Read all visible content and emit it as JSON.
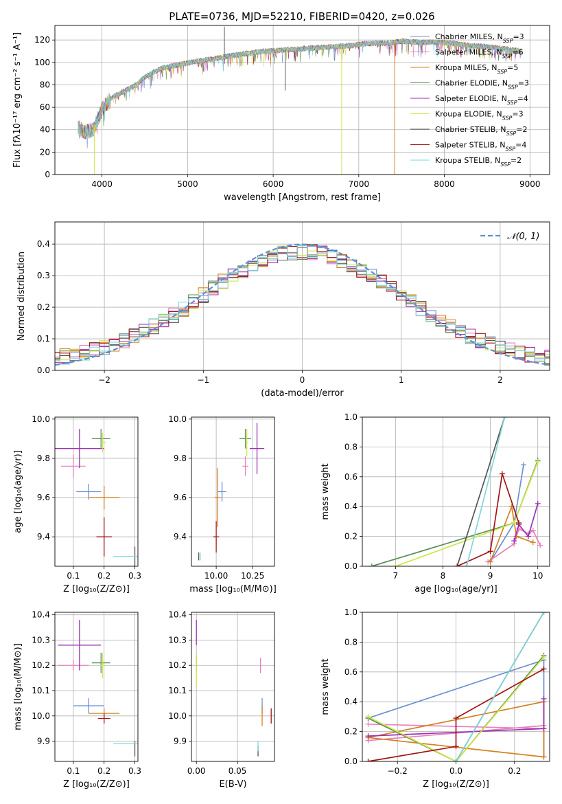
{
  "figure": {
    "title": "PLATE=0736, MJD=52210, FIBERID=0420, z=0.026"
  },
  "colors": {
    "series": [
      "#6b8fd6",
      "#ea7fbd",
      "#d6801f",
      "#5b8f56",
      "#9a32b5",
      "#cfe64a",
      "#555555",
      "#a31515",
      "#7fd6d9"
    ],
    "grid": "#b0b0b0",
    "normal": "#5b8fd6"
  },
  "models": [
    {
      "name": "Chabrier MILES",
      "nssp": "3"
    },
    {
      "name": "Salpeter MILES",
      "nssp": "6"
    },
    {
      "name": "Kroupa MILES",
      "nssp": "5"
    },
    {
      "name": "Chabrier ELODIE",
      "nssp": "3"
    },
    {
      "name": "Salpeter ELODIE",
      "nssp": "4"
    },
    {
      "name": "Kroupa ELODIE",
      "nssp": "3"
    },
    {
      "name": "Chabrier STELIB",
      "nssp": "2"
    },
    {
      "name": "Salpeter STELIB",
      "nssp": "4"
    },
    {
      "name": "Kroupa STELIB",
      "nssp": "2"
    }
  ],
  "chart_data": [
    {
      "id": "spectrum",
      "type": "line",
      "xlabel": "wavelength [Angstrom, rest frame]",
      "ylabel": "Flux [fλ10⁻¹⁷ erg cm⁻² s⁻¹ A⁻¹]",
      "xlim": [
        3450,
        9230
      ],
      "ylim": [
        0,
        133
      ],
      "xticks": [
        "4000",
        "5000",
        "6000",
        "7000",
        "8000",
        "9000"
      ],
      "xtick_values": [
        4000,
        5000,
        6000,
        7000,
        8000,
        9000
      ],
      "yticks": [
        "0",
        "20",
        "40",
        "60",
        "80",
        "100",
        "120"
      ],
      "ytick_values": [
        0,
        20,
        40,
        60,
        80,
        100,
        120
      ],
      "continuum": {
        "x": [
          3720,
          3800,
          3900,
          4000,
          4100,
          4200,
          4300,
          4400,
          4500,
          4700,
          4900,
          5100,
          5300,
          5500,
          5700,
          5900,
          6100,
          6300,
          6500,
          6700,
          6900,
          7100,
          7300,
          7500,
          7700,
          7900,
          8100,
          8300,
          8500,
          8700,
          8900
        ],
        "y": [
          42,
          38,
          40,
          58,
          68,
          72,
          76,
          80,
          87,
          95,
          98,
          101,
          103,
          106,
          108,
          110,
          111,
          112,
          113,
          114,
          115,
          117,
          117,
          119,
          118,
          118,
          117,
          115,
          114,
          112,
          110
        ]
      },
      "lines": [
        {
          "name": "Chabrier STELIB",
          "x": [
            5430
          ],
          "y": [
            132
          ]
        },
        {
          "name": "Chabrier STELIB",
          "x": [
            6140
          ],
          "y": [
            75
          ]
        },
        {
          "name": "Kroupa ELODIE",
          "x": [
            3910
          ],
          "y": [
            0
          ]
        },
        {
          "name": "Kroupa ELODIE",
          "x": [
            6800
          ],
          "y": [
            0
          ]
        },
        {
          "name": "Kroupa MILES",
          "x": [
            7420
          ],
          "y": [
            0
          ]
        }
      ]
    },
    {
      "id": "residuals",
      "type": "step",
      "xlabel": "(data-model)/error",
      "ylabel": "Normed distribution",
      "xlim": [
        -2.5,
        2.5
      ],
      "ylim": [
        0,
        0.47
      ],
      "xticks": [
        "−2",
        "−1",
        "0",
        "1",
        "2"
      ],
      "xtick_values": [
        -2,
        -1,
        0,
        1,
        2
      ],
      "yticks": [
        "0.0",
        "0.1",
        "0.2",
        "0.3",
        "0.4"
      ],
      "ytick_values": [
        0,
        0.1,
        0.2,
        0.3,
        0.4
      ],
      "bin_width": 0.1,
      "legend": "𝒩(0, 1)"
    },
    {
      "id": "z_age",
      "type": "errorbar",
      "xlabel": "Z [log₁₀(Z/Z⊙)]",
      "ylabel": "age  [log₁₀(age/yr)]",
      "xlim": [
        0.04,
        0.31
      ],
      "ylim": [
        9.25,
        10.01
      ],
      "xticks": [
        "0.1",
        "0.2",
        "0.3"
      ],
      "xtick_values": [
        0.1,
        0.2,
        0.3
      ],
      "yticks": [
        "9.4",
        "9.6",
        "9.8",
        "10.0"
      ],
      "ytick_values": [
        9.4,
        9.6,
        9.8,
        10.0
      ],
      "points": [
        {
          "x": 0.15,
          "y": 9.63,
          "xerr": 0.04,
          "yerr": 0.04
        },
        {
          "x": 0.1,
          "y": 9.76,
          "xerr": 0.04,
          "yerr": 0.06
        },
        {
          "x": 0.2,
          "y": 9.6,
          "xerr": 0.05,
          "yerr": 0.06
        },
        {
          "x": 0.19,
          "y": 9.9,
          "xerr": 0.03,
          "yerr": 0.05
        },
        {
          "x": 0.12,
          "y": 9.85,
          "xerr": 0.08,
          "yerr": 0.1
        },
        {
          "x": 0.195,
          "y": 9.88,
          "xerr": 0.01,
          "yerr": 0.05
        },
        {
          "x": 0.3,
          "y": 9.3,
          "xerr": 0.0,
          "yerr": 0.05
        },
        {
          "x": 0.2,
          "y": 9.4,
          "xerr": 0.025,
          "yerr": 0.1
        },
        {
          "x": 0.27,
          "y": 9.3,
          "xerr": 0.04,
          "yerr": 0.0
        }
      ]
    },
    {
      "id": "mass_age",
      "type": "errorbar",
      "xlabel": "mass [log₁₀(M/M⊙)]",
      "ylabel": "",
      "xlim": [
        9.83,
        10.4
      ],
      "ylim": [
        9.25,
        10.01
      ],
      "xticks": [
        "10.00",
        "10.25"
      ],
      "xtick_values": [
        10.0,
        10.25
      ],
      "yticks": [
        "9.4",
        "9.6",
        "9.8",
        "10.0"
      ],
      "ytick_values": [
        9.4,
        9.6,
        9.8,
        10.0
      ],
      "points": [
        {
          "x": 10.04,
          "y": 9.63,
          "xerr": 0.03,
          "yerr": 0.05
        },
        {
          "x": 10.2,
          "y": 9.76,
          "xerr": 0.02,
          "yerr": 0.05
        },
        {
          "x": 10.01,
          "y": 9.6,
          "xerr": 0.02,
          "yerr": 0.15
        },
        {
          "x": 10.2,
          "y": 9.9,
          "xerr": 0.04,
          "yerr": 0.05
        },
        {
          "x": 10.28,
          "y": 9.85,
          "xerr": 0.05,
          "yerr": 0.13
        },
        {
          "x": 10.21,
          "y": 9.88,
          "xerr": 0.01,
          "yerr": 0.07
        },
        {
          "x": 9.88,
          "y": 9.3,
          "xerr": 0.0,
          "yerr": 0.02
        },
        {
          "x": 10.0,
          "y": 9.4,
          "xerr": 0.02,
          "yerr": 0.08
        },
        {
          "x": 9.89,
          "y": 9.3,
          "xerr": 0.0,
          "yerr": 0.02
        }
      ]
    },
    {
      "id": "age_weight",
      "type": "line",
      "xlabel": "age  [log₁₀(age/yr)]",
      "ylabel": "mass weight",
      "xlim": [
        6.3,
        10.25
      ],
      "ylim": [
        0,
        1.0
      ],
      "xticks": [
        "7",
        "8",
        "9",
        "10"
      ],
      "xtick_values": [
        7,
        8,
        9,
        10
      ],
      "yticks": [
        "0.0",
        "0.2",
        "0.4",
        "0.6",
        "0.8",
        "1.0"
      ],
      "ytick_values": [
        0,
        0.2,
        0.4,
        0.6,
        0.8,
        1.0
      ],
      "series": [
        {
          "name": "Chabrier MILES",
          "x": [
            9.0,
            9.5,
            9.7
          ],
          "y": [
            0.03,
            0.29,
            0.68
          ]
        },
        {
          "name": "Salpeter MILES",
          "x": [
            8.95,
            9.5,
            9.6,
            9.8,
            9.9,
            10.05
          ],
          "y": [
            0.03,
            0.15,
            0.25,
            0.22,
            0.24,
            0.14
          ]
        },
        {
          "name": "Kroupa MILES",
          "x": [
            9.0,
            9.45,
            9.55,
            9.9
          ],
          "y": [
            0.03,
            0.4,
            0.2,
            0.16
          ]
        },
        {
          "name": "Chabrier ELODIE",
          "x": [
            6.5,
            9.5,
            10.0
          ],
          "y": [
            0.0,
            0.29,
            0.71
          ]
        },
        {
          "name": "Salpeter ELODIE",
          "x": [
            9.5,
            9.6,
            9.8,
            10.0
          ],
          "y": [
            0.17,
            0.28,
            0.2,
            0.42
          ]
        },
        {
          "name": "Kroupa ELODIE",
          "x": [
            7.0,
            9.5,
            10.0
          ],
          "y": [
            0.0,
            0.29,
            0.7
          ]
        },
        {
          "name": "Chabrier STELIB",
          "x": [
            8.3,
            9.3
          ],
          "y": [
            0.0,
            1.0
          ]
        },
        {
          "name": "Salpeter STELIB",
          "x": [
            8.3,
            9.0,
            9.25,
            9.6
          ],
          "y": [
            0.0,
            0.1,
            0.62,
            0.29
          ]
        },
        {
          "name": "Kroupa STELIB",
          "x": [
            8.5,
            9.3
          ],
          "y": [
            0.0,
            1.0
          ]
        }
      ]
    },
    {
      "id": "z_mass",
      "type": "errorbar",
      "xlabel": "Z [log₁₀(Z/Z⊙)]",
      "ylabel": "mass [log₁₀(M/M⊙)]",
      "xlim": [
        0.04,
        0.31
      ],
      "ylim": [
        9.82,
        10.41
      ],
      "xticks": [
        "0.1",
        "0.2",
        "0.3"
      ],
      "xtick_values": [
        0.1,
        0.2,
        0.3
      ],
      "yticks": [
        "9.9",
        "10.0",
        "10.1",
        "10.2",
        "10.3",
        "10.4"
      ],
      "ytick_values": [
        9.9,
        10.0,
        10.1,
        10.2,
        10.3,
        10.4
      ],
      "points": [
        {
          "x": 0.15,
          "y": 10.04,
          "xerr": 0.05,
          "yerr": 0.03
        },
        {
          "x": 0.1,
          "y": 10.2,
          "xerr": 0.05,
          "yerr": 0.02
        },
        {
          "x": 0.2,
          "y": 10.01,
          "xerr": 0.05,
          "yerr": 0.02
        },
        {
          "x": 0.19,
          "y": 10.21,
          "xerr": 0.03,
          "yerr": 0.04
        },
        {
          "x": 0.12,
          "y": 10.28,
          "xerr": 0.07,
          "yerr": 0.1
        },
        {
          "x": 0.195,
          "y": 10.2,
          "xerr": 0.01,
          "yerr": 0.05
        },
        {
          "x": 0.3,
          "y": 9.87,
          "xerr": 0.0,
          "yerr": 0.03
        },
        {
          "x": 0.2,
          "y": 9.99,
          "xerr": 0.02,
          "yerr": 0.02
        },
        {
          "x": 0.27,
          "y": 9.89,
          "xerr": 0.04,
          "yerr": 0.0
        }
      ]
    },
    {
      "id": "ebv_mass",
      "type": "errorbar",
      "xlabel": "E(B-V)",
      "ylabel": "",
      "xlim": [
        -0.006,
        0.095
      ],
      "ylim": [
        9.82,
        10.41
      ],
      "xticks": [
        "0.00",
        "0.05"
      ],
      "xtick_values": [
        0.0,
        0.05
      ],
      "yticks": [
        "9.9",
        "10.0",
        "10.1",
        "10.2",
        "10.3",
        "10.4"
      ],
      "ytick_values": [
        9.9,
        10.0,
        10.1,
        10.2,
        10.3,
        10.4
      ],
      "points": [
        {
          "x": 0.08,
          "y": 10.04,
          "xerr": 0.0,
          "yerr": 0.03
        },
        {
          "x": 0.078,
          "y": 10.2,
          "xerr": 0.0,
          "yerr": 0.03
        },
        {
          "x": 0.08,
          "y": 10.0,
          "xerr": 0.0,
          "yerr": 0.04
        },
        {
          "x": 0.0,
          "y": 10.21,
          "xerr": 0.0,
          "yerr": 0.03
        },
        {
          "x": 0.0,
          "y": 10.33,
          "xerr": 0.0,
          "yerr": 0.05
        },
        {
          "x": 0.0,
          "y": 10.18,
          "xerr": 0.0,
          "yerr": 0.06
        },
        {
          "x": 0.075,
          "y": 9.86,
          "xerr": 0.0,
          "yerr": 0.02
        },
        {
          "x": 0.091,
          "y": 10.0,
          "xerr": 0.0,
          "yerr": 0.03
        },
        {
          "x": 0.075,
          "y": 9.88,
          "xerr": 0.0,
          "yerr": 0.02
        }
      ]
    },
    {
      "id": "z_weight",
      "type": "line",
      "xlabel": "Z [log₁₀(Z/Z⊙)]",
      "ylabel": "mass weight",
      "xlim": [
        -0.32,
        0.32
      ],
      "ylim": [
        0,
        1.0
      ],
      "xticks": [
        "−0.2",
        "0.0",
        "0.2"
      ],
      "xtick_values": [
        -0.2,
        0.0,
        0.2
      ],
      "yticks": [
        "0.0",
        "0.2",
        "0.4",
        "0.6",
        "0.8",
        "1.0"
      ],
      "ytick_values": [
        0,
        0.2,
        0.4,
        0.6,
        0.8,
        1.0
      ],
      "series": [
        {
          "name": "Chabrier MILES",
          "x": [
            -0.3,
            0.3,
            0.3
          ],
          "y": [
            0.29,
            0.68,
            0.03
          ]
        },
        {
          "name": "Salpeter MILES",
          "x": [
            -0.3,
            0.3,
            0.3,
            -0.3
          ],
          "y": [
            0.25,
            0.22,
            0.24,
            0.14
          ]
        },
        {
          "name": "Kroupa MILES",
          "x": [
            -0.3,
            0.3,
            0.3,
            -0.3
          ],
          "y": [
            0.16,
            0.4,
            0.03,
            0.16
          ]
        },
        {
          "name": "Chabrier ELODIE",
          "x": [
            -0.3,
            0.0,
            0.3
          ],
          "y": [
            0.29,
            0.0,
            0.71
          ]
        },
        {
          "name": "Salpeter ELODIE",
          "x": [
            -0.3,
            0.3,
            0.3
          ],
          "y": [
            0.17,
            0.22,
            0.42
          ]
        },
        {
          "name": "Kroupa ELODIE",
          "x": [
            -0.3,
            0.0,
            0.3
          ],
          "y": [
            0.3,
            0.0,
            0.7
          ]
        },
        {
          "name": "Chabrier STELIB",
          "x": [
            0.0,
            0.3
          ],
          "y": [
            0.0,
            1.0
          ]
        },
        {
          "name": "Salpeter STELIB",
          "x": [
            -0.3,
            0.0,
            0.0,
            0.3
          ],
          "y": [
            0.0,
            0.1,
            0.29,
            0.62
          ]
        },
        {
          "name": "Kroupa STELIB",
          "x": [
            0.0,
            0.3
          ],
          "y": [
            0.0,
            1.0
          ]
        }
      ]
    }
  ]
}
